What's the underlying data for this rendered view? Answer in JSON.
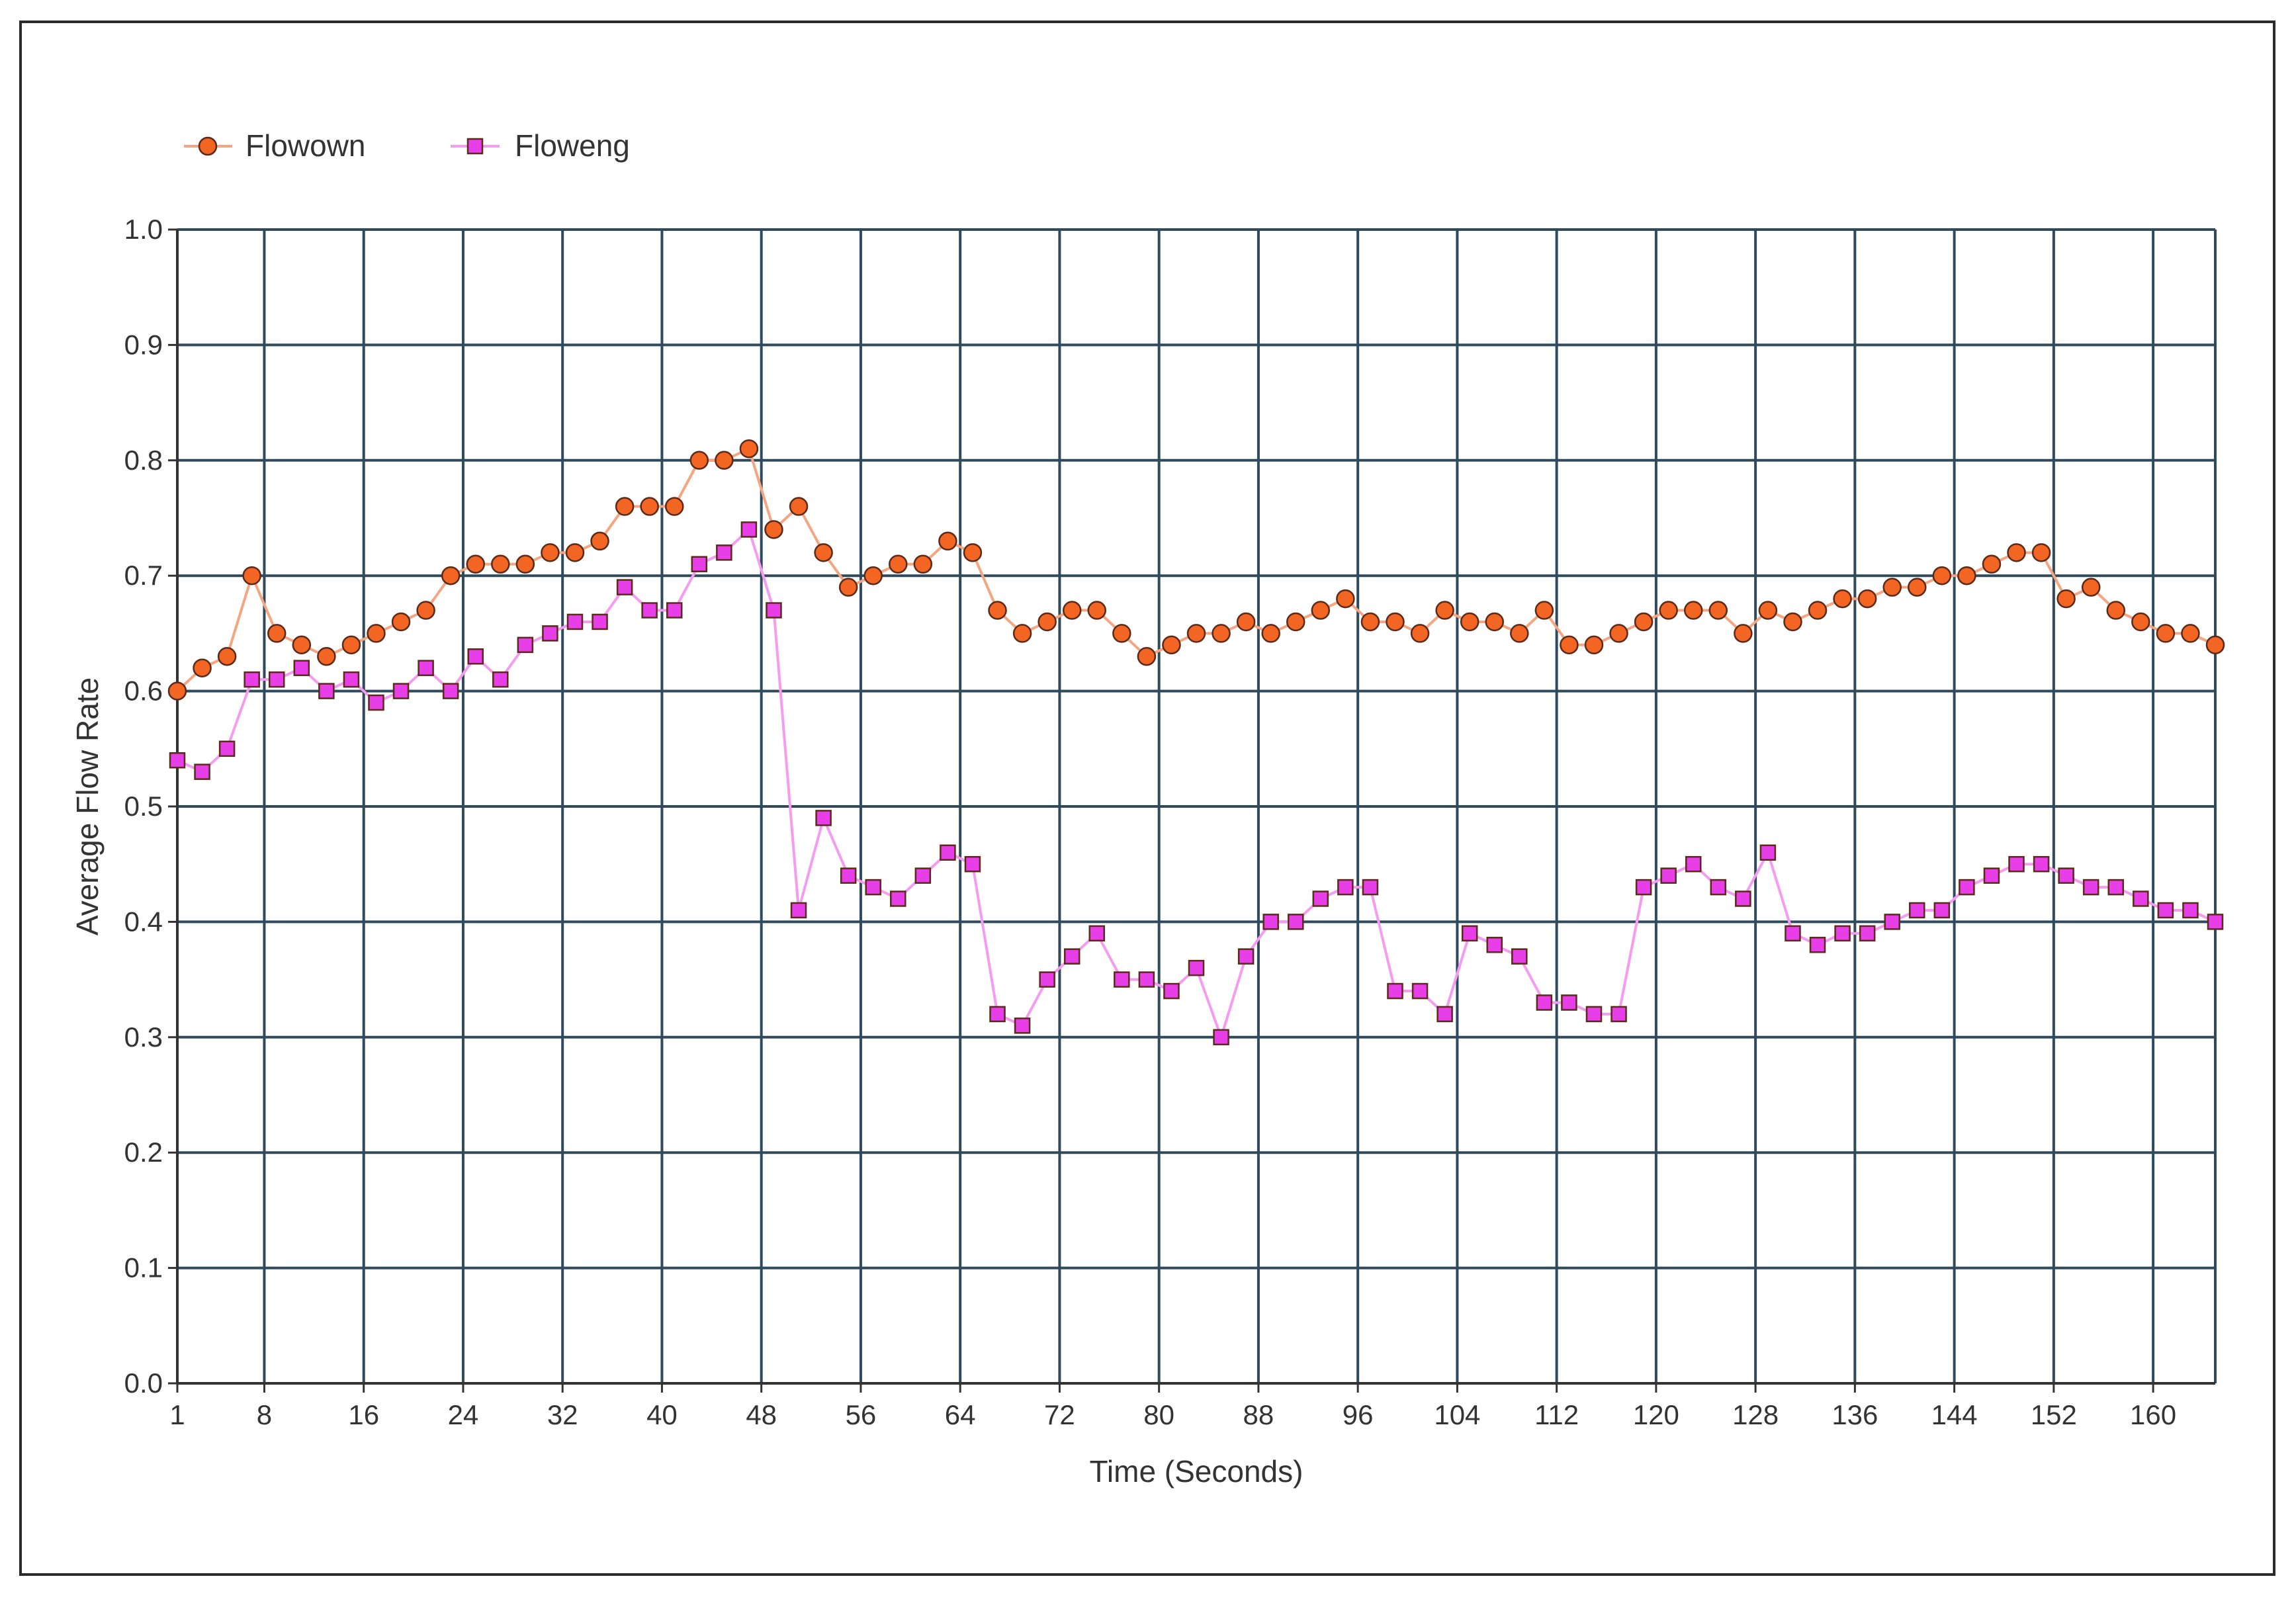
{
  "chart_data": {
    "type": "line",
    "title": "",
    "xlabel": "Time (Seconds)",
    "ylabel": "Average Flow Rate",
    "xlim": [
      1,
      163
    ],
    "ylim": [
      0.0,
      1.0
    ],
    "x_ticks": [
      1,
      8,
      16,
      24,
      32,
      40,
      48,
      56,
      64,
      72,
      80,
      88,
      96,
      104,
      112,
      120,
      128,
      136,
      144,
      152,
      160
    ],
    "x_tick_labels": [
      "1",
      "8",
      "16",
      "24",
      "32",
      "40",
      "48",
      "56",
      "64",
      "72",
      "80",
      "88",
      "96",
      "104",
      "112",
      "120",
      "128",
      "136",
      "144",
      "152",
      "160"
    ],
    "y_ticks": [
      0.0,
      0.1,
      0.2,
      0.3,
      0.4,
      0.5,
      0.6,
      0.7,
      0.8,
      0.9,
      1.0
    ],
    "y_tick_labels": [
      "0.0",
      "0.1",
      "0.2",
      "0.3",
      "0.4",
      "0.5",
      "0.6",
      "0.7",
      "0.8",
      "0.9",
      "1.0"
    ],
    "grid": true,
    "legend_position": "top-left",
    "colors": {
      "grid": "#2f4a5c",
      "flowown_line": "#f4a582",
      "flowown_marker": "#f26522",
      "floweng_line": "#f59bf0",
      "floweng_marker": "#e83ee8",
      "marker_edge": "#5a2a1a"
    },
    "x": [
      1,
      3,
      5,
      7,
      9,
      11,
      13,
      15,
      17,
      19,
      21,
      23,
      25,
      27,
      29,
      31,
      33,
      35,
      37,
      39,
      41,
      43,
      45,
      47,
      49,
      51,
      53,
      55,
      57,
      59,
      61,
      63,
      65,
      67,
      69,
      71,
      73,
      75,
      77,
      79,
      81,
      83,
      85,
      87,
      89,
      91,
      93,
      95,
      97,
      99,
      101,
      103,
      105,
      107,
      109,
      111,
      113,
      115,
      117,
      119,
      121,
      123,
      125,
      127,
      129,
      131,
      133,
      135,
      137,
      139,
      141,
      143,
      145,
      147,
      149,
      151,
      153,
      155,
      157,
      159,
      161,
      163,
      165
    ],
    "series": [
      {
        "name": "Flowown",
        "marker": "circle",
        "values": [
          0.6,
          0.62,
          0.63,
          0.7,
          0.65,
          0.64,
          0.63,
          0.64,
          0.65,
          0.66,
          0.67,
          0.7,
          0.71,
          0.71,
          0.71,
          0.72,
          0.72,
          0.73,
          0.76,
          0.76,
          0.76,
          0.8,
          0.8,
          0.81,
          0.74,
          0.76,
          0.72,
          0.69,
          0.7,
          0.71,
          0.71,
          0.73,
          0.72,
          0.67,
          0.65,
          0.66,
          0.67,
          0.67,
          0.65,
          0.63,
          0.64,
          0.65,
          0.65,
          0.66,
          0.65,
          0.66,
          0.67,
          0.68,
          0.66,
          0.66,
          0.65,
          0.67,
          0.66,
          0.66,
          0.65,
          0.67,
          0.64,
          0.64,
          0.65,
          0.66,
          0.67,
          0.67,
          0.67,
          0.65,
          0.67,
          0.66,
          0.67,
          0.68,
          0.68,
          0.69,
          0.69,
          0.7,
          0.7,
          0.71,
          0.72,
          0.72,
          0.68,
          0.69,
          0.67,
          0.66,
          0.65,
          0.65,
          0.64
        ]
      },
      {
        "name": "Floweng",
        "marker": "square",
        "values": [
          0.54,
          0.53,
          0.55,
          0.61,
          0.61,
          0.62,
          0.6,
          0.61,
          0.59,
          0.6,
          0.62,
          0.6,
          0.63,
          0.61,
          0.64,
          0.65,
          0.66,
          0.66,
          0.69,
          0.67,
          0.67,
          0.71,
          0.72,
          0.74,
          0.67,
          0.41,
          0.49,
          0.44,
          0.43,
          0.42,
          0.44,
          0.46,
          0.45,
          0.32,
          0.31,
          0.35,
          0.37,
          0.39,
          0.35,
          0.35,
          0.34,
          0.36,
          0.3,
          0.37,
          0.4,
          0.4,
          0.42,
          0.43,
          0.43,
          0.34,
          0.34,
          0.32,
          0.39,
          0.38,
          0.37,
          0.33,
          0.33,
          0.32,
          0.32,
          0.43,
          0.44,
          0.45,
          0.43,
          0.42,
          0.46,
          0.39,
          0.38,
          0.39,
          0.39,
          0.4,
          0.41,
          0.41,
          0.43,
          0.44,
          0.45,
          0.45,
          0.44,
          0.43,
          0.43,
          0.42,
          0.41,
          0.41,
          0.4
        ]
      }
    ]
  }
}
